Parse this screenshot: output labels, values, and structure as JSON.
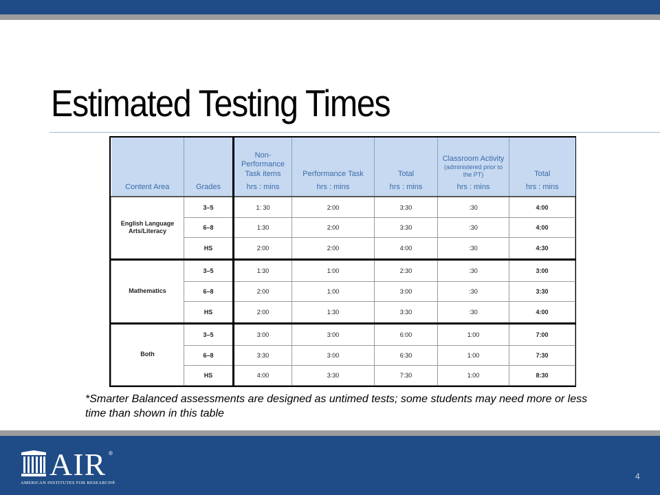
{
  "slide": {
    "title": "Estimated Testing Times",
    "footnote": "*Smarter Balanced assessments are designed as untimed tests; some students may need more or less time than shown in this table",
    "page_number": "4"
  },
  "table": {
    "headers": {
      "content_area": "Content Area",
      "grades": "Grades",
      "non_perf": "Non-Performance Task items",
      "perf_task": "Performance Task",
      "total1": "Total",
      "classroom": "Classroom Activity",
      "classroom_note": "(administered prior to the PT)",
      "total2": "Total",
      "unit": "hrs : mins"
    },
    "groups": [
      {
        "area": "English Language Arts/Literacy",
        "rows": [
          {
            "grade": "3–5",
            "non_perf": "1: 30",
            "perf": "2:00",
            "total": "3:30",
            "classroom": ":30",
            "total2": "4:00"
          },
          {
            "grade": "6–8",
            "non_perf": "1:30",
            "perf": "2:00",
            "total": "3:30",
            "classroom": ":30",
            "total2": "4:00"
          },
          {
            "grade": "HS",
            "non_perf": "2:00",
            "perf": "2:00",
            "total": "4:00",
            "classroom": ":30",
            "total2": "4:30"
          }
        ]
      },
      {
        "area": "Mathematics",
        "rows": [
          {
            "grade": "3–5",
            "non_perf": "1:30",
            "perf": "1:00",
            "total": "2:30",
            "classroom": ":30",
            "total2": "3:00"
          },
          {
            "grade": "6–8",
            "non_perf": "2:00",
            "perf": "1:00",
            "total": "3:00",
            "classroom": ":30",
            "total2": "3:30"
          },
          {
            "grade": "HS",
            "non_perf": "2:00",
            "perf": "1:30",
            "total": "3:30",
            "classroom": ":30",
            "total2": "4:00"
          }
        ]
      },
      {
        "area": "Both",
        "rows": [
          {
            "grade": "3–5",
            "non_perf": "3:00",
            "perf": "3:00",
            "total": "6:00",
            "classroom": "1:00",
            "total2": "7:00"
          },
          {
            "grade": "6–8",
            "non_perf": "3:30",
            "perf": "3:00",
            "total": "6:30",
            "classroom": "1:00",
            "total2": "7:30"
          },
          {
            "grade": "HS",
            "non_perf": "4:00",
            "perf": "3:30",
            "total": "7:30",
            "classroom": "1:00",
            "total2": "8:30"
          }
        ]
      }
    ]
  },
  "logo": {
    "name": "AIR",
    "registered": "®",
    "tagline": "AMERICAN INSTITUTES FOR RESEARCH®"
  },
  "colors": {
    "brand_blue": "#1f4b86",
    "stripe_gray": "#9d9d9d",
    "header_fill": "#c6d9f1",
    "header_text": "#3a6aa8"
  }
}
